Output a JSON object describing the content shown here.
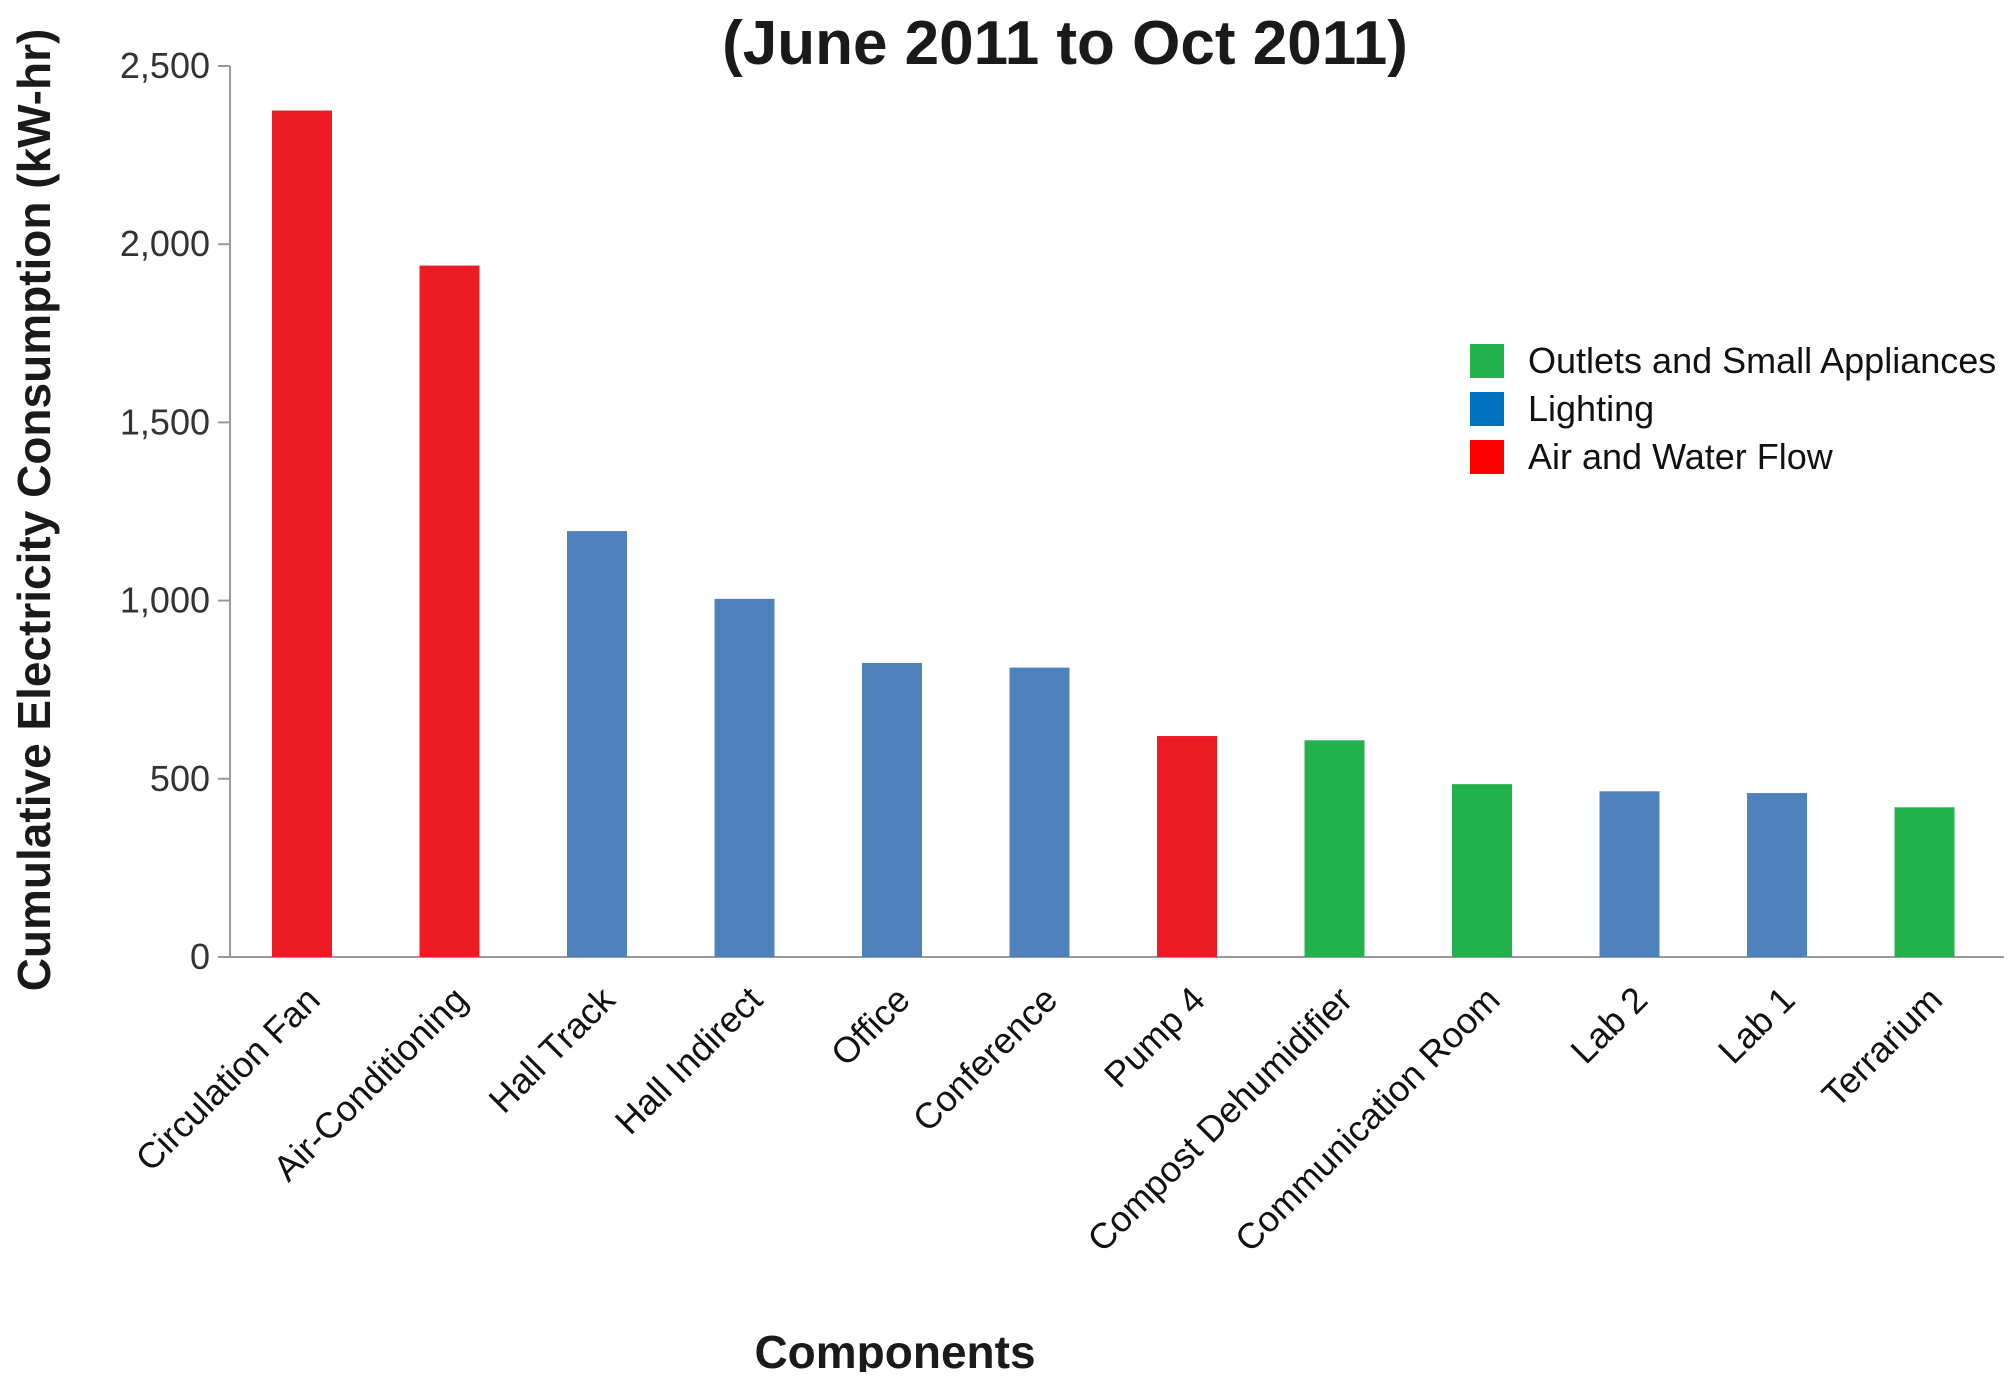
{
  "chart_data": {
    "type": "bar",
    "title": "(June 2011 to Oct 2011)",
    "xlabel": "Components",
    "ylabel": "Cumulative Electricity Consumption (kW-hr)",
    "ylim": [
      0,
      2500
    ],
    "yticks": [
      0,
      500,
      1000,
      1500,
      2000,
      2500
    ],
    "ytick_labels": [
      "0",
      "500",
      "1,000",
      "1,500",
      "2,000",
      "2,500"
    ],
    "grid": false,
    "legend_position": "right",
    "legend": [
      {
        "name": "Outlets and Small Appliances",
        "color": "#23b14d"
      },
      {
        "name": "Lighting",
        "color": "#0070c0"
      },
      {
        "name": "Air and Water Flow",
        "color": "#ff0000"
      }
    ],
    "bars": [
      {
        "category": "Circulation Fan",
        "value": 2375,
        "color": "#ed1c24"
      },
      {
        "category": "Air-Conditioning",
        "value": 1940,
        "color": "#ed1c24"
      },
      {
        "category": "Hall Track",
        "value": 1195,
        "color": "#4f81bd"
      },
      {
        "category": "Hall Indirect",
        "value": 1005,
        "color": "#4f81bd"
      },
      {
        "category": "Office",
        "value": 825,
        "color": "#4f81bd"
      },
      {
        "category": "Conference",
        "value": 812,
        "color": "#4f81bd"
      },
      {
        "category": "Pump 4",
        "value": 620,
        "color": "#ed1c24"
      },
      {
        "category": "Compost Dehumidifier",
        "value": 608,
        "color": "#23b14d"
      },
      {
        "category": "Communication Room",
        "value": 485,
        "color": "#23b14d"
      },
      {
        "category": "Lab 2",
        "value": 465,
        "color": "#4f81bd"
      },
      {
        "category": "Lab 1",
        "value": 460,
        "color": "#4f81bd"
      },
      {
        "category": "Terrarium",
        "value": 420,
        "color": "#23b14d"
      }
    ]
  }
}
